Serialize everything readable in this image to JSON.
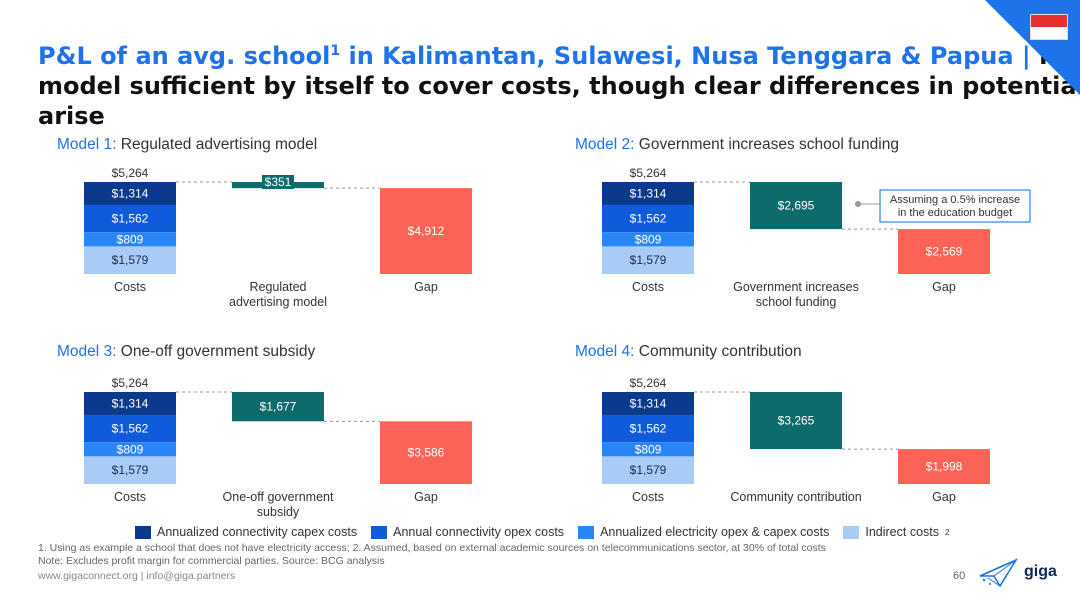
{
  "title": {
    "part1": "P&L of an avg. school",
    "sup": "1",
    "part2": " in Kalimantan, Sulawesi, Nusa Tenggara & Papua | ",
    "part3": "No",
    "line2": "model sufficient by itself to cover costs, though clear differences in potential",
    "line3": "arise"
  },
  "colors": {
    "capex": "#0b3a8c",
    "opex": "#0f5bdc",
    "electricity": "#2b86f5",
    "indirect": "#a9ccf7",
    "model": "#0e6b6b",
    "gap": "#fa6355",
    "accent": "#1e73e8"
  },
  "chart_data": [
    {
      "type": "bar",
      "model_label": "Model 1:",
      "model_name": "Regulated advertising model",
      "total_label": "$5,264",
      "total": 5264,
      "cost_stack": [
        {
          "name": "Annualized connectivity capex costs",
          "value": 1314,
          "label": "$1,314"
        },
        {
          "name": "Annual connectivity opex costs",
          "value": 1562,
          "label": "$1,562"
        },
        {
          "name": "Annualized electricity opex & capex costs",
          "value": 809,
          "label": "$809"
        },
        {
          "name": "Indirect costs",
          "value": 1579,
          "label": "$1,579"
        }
      ],
      "model_value": 351,
      "model_value_label": "$351",
      "gap_value": 4912,
      "gap_label": "$4,912",
      "categories": [
        "Costs",
        "Regulated\nadvertising model",
        "Gap"
      ]
    },
    {
      "type": "bar",
      "model_label": "Model 2:",
      "model_name": "Government increases school funding",
      "total_label": "$5,264",
      "total": 5264,
      "cost_stack": [
        {
          "name": "Annualized connectivity capex costs",
          "value": 1314,
          "label": "$1,314"
        },
        {
          "name": "Annual connectivity opex costs",
          "value": 1562,
          "label": "$1,562"
        },
        {
          "name": "Annualized electricity opex & capex costs",
          "value": 809,
          "label": "$809"
        },
        {
          "name": "Indirect costs",
          "value": 1579,
          "label": "$1,579"
        }
      ],
      "model_value": 2695,
      "model_value_label": "$2,695",
      "gap_value": 2569,
      "gap_label": "$2,569",
      "categories": [
        "Costs",
        "Government increases\nschool funding",
        "Gap"
      ],
      "annotation": "Assuming a 0.5% increase\nin the education budget"
    },
    {
      "type": "bar",
      "model_label": "Model 3:",
      "model_name": "One-off government subsidy",
      "total_label": "$5,264",
      "total": 5264,
      "cost_stack": [
        {
          "name": "Annualized connectivity capex costs",
          "value": 1314,
          "label": "$1,314"
        },
        {
          "name": "Annual connectivity opex costs",
          "value": 1562,
          "label": "$1,562"
        },
        {
          "name": "Annualized electricity opex & capex costs",
          "value": 809,
          "label": "$809"
        },
        {
          "name": "Indirect costs",
          "value": 1579,
          "label": "$1,579"
        }
      ],
      "model_value": 1677,
      "model_value_label": "$1,677",
      "gap_value": 3586,
      "gap_label": "$3,586",
      "categories": [
        "Costs",
        "One-off government\nsubsidy",
        "Gap"
      ]
    },
    {
      "type": "bar",
      "model_label": "Model 4:",
      "model_name": "Community contribution",
      "total_label": "$5,264",
      "total": 5264,
      "cost_stack": [
        {
          "name": "Annualized connectivity capex costs",
          "value": 1314,
          "label": "$1,314"
        },
        {
          "name": "Annual connectivity opex costs",
          "value": 1562,
          "label": "$1,562"
        },
        {
          "name": "Annualized electricity opex & capex costs",
          "value": 809,
          "label": "$809"
        },
        {
          "name": "Indirect costs",
          "value": 1579,
          "label": "$1,579"
        }
      ],
      "model_value": 3265,
      "model_value_label": "$3,265",
      "gap_value": 1998,
      "gap_label": "$1,998",
      "categories": [
        "Costs",
        "Community contribution",
        "Gap"
      ]
    }
  ],
  "legend": [
    {
      "label": "Annualized connectivity capex costs",
      "sup": "",
      "color": "#0b3a8c"
    },
    {
      "label": "Annual connectivity opex costs",
      "sup": "",
      "color": "#0f5bdc"
    },
    {
      "label": "Annualized electricity opex & capex costs",
      "sup": "",
      "color": "#2b86f5"
    },
    {
      "label": "Indirect costs",
      "sup": "2",
      "color": "#a9ccf7"
    }
  ],
  "footnotes": {
    "line1": "1. Using as example a school that does not have electricity access; 2. Assumed, based on external academic sources on telecommunications sector, at 30% of total costs",
    "line2": "Note: Excludes profit margin for commercial parties. Source: BCG analysis",
    "line3": "www.gigaconnect.org  |  info@giga.partners"
  },
  "page_number": "60",
  "logo_text": "giga"
}
